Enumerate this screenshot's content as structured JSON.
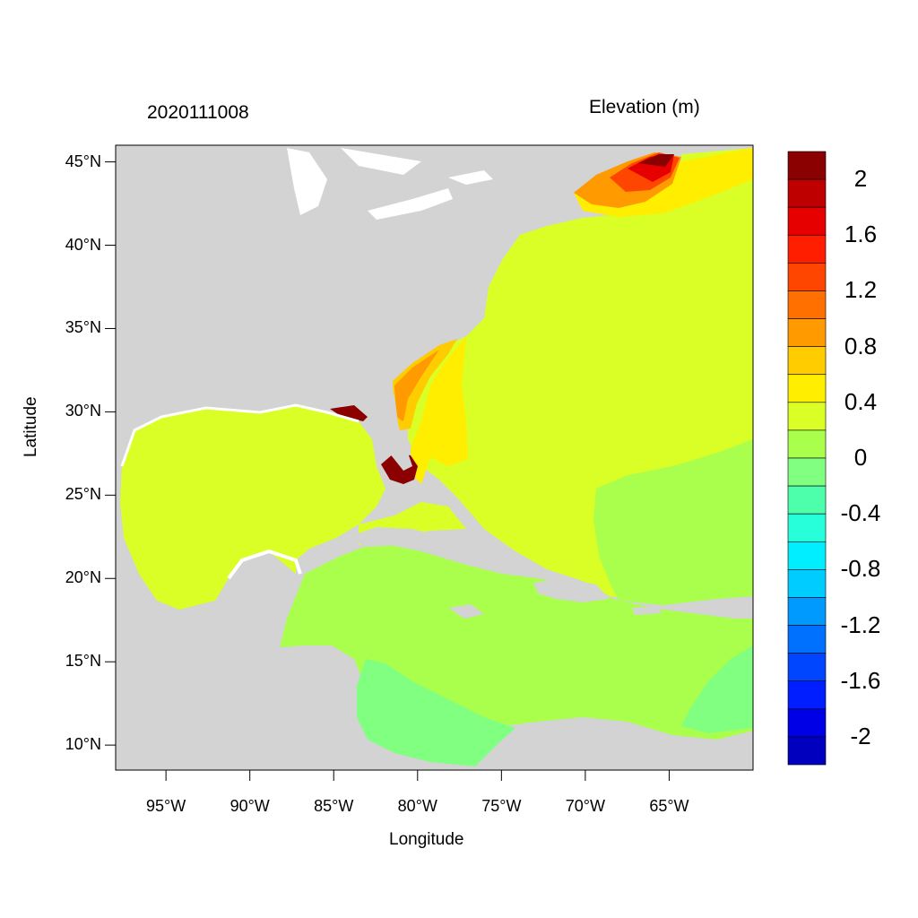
{
  "map": {
    "timestamp": "2020111008",
    "variable": "Elevation (m)",
    "x_axis_label": "Longitude",
    "y_axis_label": "Latitude",
    "lon_range": [
      -98,
      -60
    ],
    "lat_range": [
      8.5,
      46
    ],
    "lat_ticks": [
      "45°N",
      "40°N",
      "35°N",
      "30°N",
      "25°N",
      "20°N",
      "15°N",
      "10°N"
    ],
    "lat_values": [
      45,
      40,
      35,
      30,
      25,
      20,
      15,
      10
    ],
    "lon_ticks": [
      "95°W",
      "90°W",
      "85°W",
      "80°W",
      "75°W",
      "70°W",
      "65°W"
    ],
    "lon_values": [
      -95,
      -90,
      -85,
      -80,
      -75,
      -70,
      -65
    ],
    "land_color": "#d3d3d3",
    "regions": [
      {
        "name": "gulf-of-mexico",
        "level": "0.2-0.4",
        "color": "#d9ff26"
      },
      {
        "name": "western-atlantic",
        "level": "0.2-0.4",
        "color": "#d9ff26"
      },
      {
        "name": "caribbean-sea",
        "level": "0-0.2",
        "color": "#aaff4d"
      },
      {
        "name": "eastern-atlantic",
        "level": "0-0.2",
        "color": "#aaff4d"
      },
      {
        "name": "southwest-caribbean",
        "level": "-0.2-0",
        "color": "#80ff80"
      },
      {
        "name": "gulf-stream",
        "level": "0.4-0.6",
        "color": "#ffee00"
      },
      {
        "name": "southeast-coast-surge",
        "level": "0.6-0.8",
        "color": "#ffcc00"
      },
      {
        "name": "gulf-of-maine",
        "level": "1.6-2.0",
        "color": "#e60000"
      },
      {
        "name": "south-florida-max",
        "level": ">2.0",
        "color": "#8b0000"
      }
    ]
  },
  "colorbar": {
    "labels": [
      "2",
      "1.6",
      "1.2",
      "0.8",
      "0.4",
      "0",
      "-0.4",
      "-0.8",
      "-1.2",
      "-1.6",
      "-2"
    ],
    "colors": [
      "#8b0000",
      "#be0000",
      "#e60000",
      "#ff1e00",
      "#ff4600",
      "#ff7000",
      "#ff9a00",
      "#ffcc00",
      "#ffee00",
      "#d9ff26",
      "#aaff4d",
      "#80ff80",
      "#4dffaa",
      "#26ffd9",
      "#00eeff",
      "#00ccff",
      "#009aff",
      "#0070ff",
      "#0046ff",
      "#001eff",
      "#0000e6",
      "#0000be"
    ]
  }
}
